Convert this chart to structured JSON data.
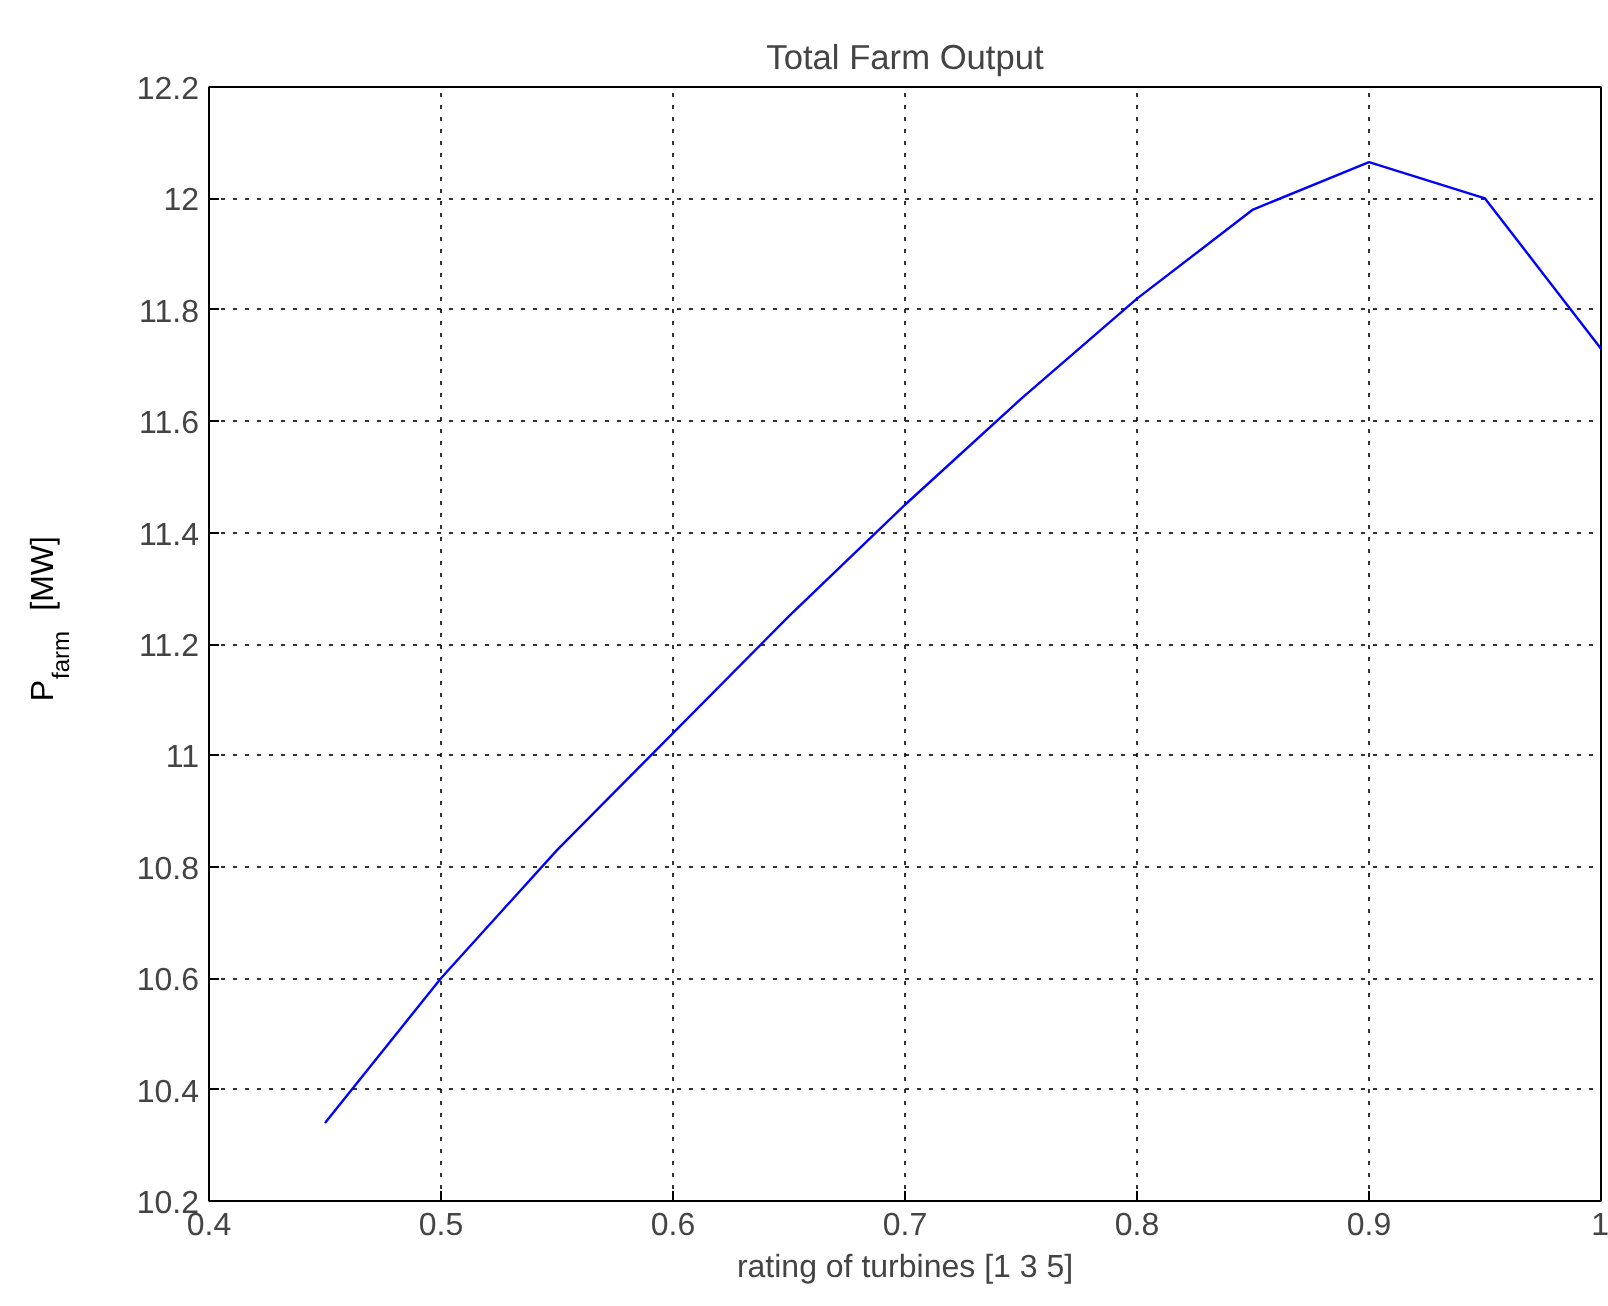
{
  "chart_data": {
    "type": "line",
    "title": "Total Farm Output",
    "xlabel": "rating of turbines [1 3 5]",
    "ylabel": "P$_{farm}$  [MW]",
    "x": [
      0.45,
      0.5,
      0.55,
      0.6,
      0.65,
      0.7,
      0.75,
      0.8,
      0.85,
      0.9,
      0.95,
      1.0
    ],
    "series": [
      {
        "color": "#0000ff",
        "values": [
          10.34,
          10.6,
          10.83,
          11.04,
          11.25,
          11.45,
          11.64,
          11.82,
          11.98,
          12.065,
          12.0,
          11.73
        ]
      }
    ],
    "xlim": [
      0.4,
      1.0
    ],
    "ylim": [
      10.2,
      12.2
    ],
    "xticks": [
      0.4,
      0.5,
      0.6,
      0.7,
      0.8,
      0.9,
      1
    ],
    "yticks": [
      10.2,
      10.4,
      10.6,
      10.8,
      11,
      11.2,
      11.4,
      11.6,
      11.8,
      12,
      12.2
    ],
    "grid": true,
    "line_style": "solid",
    "marker": "none"
  }
}
